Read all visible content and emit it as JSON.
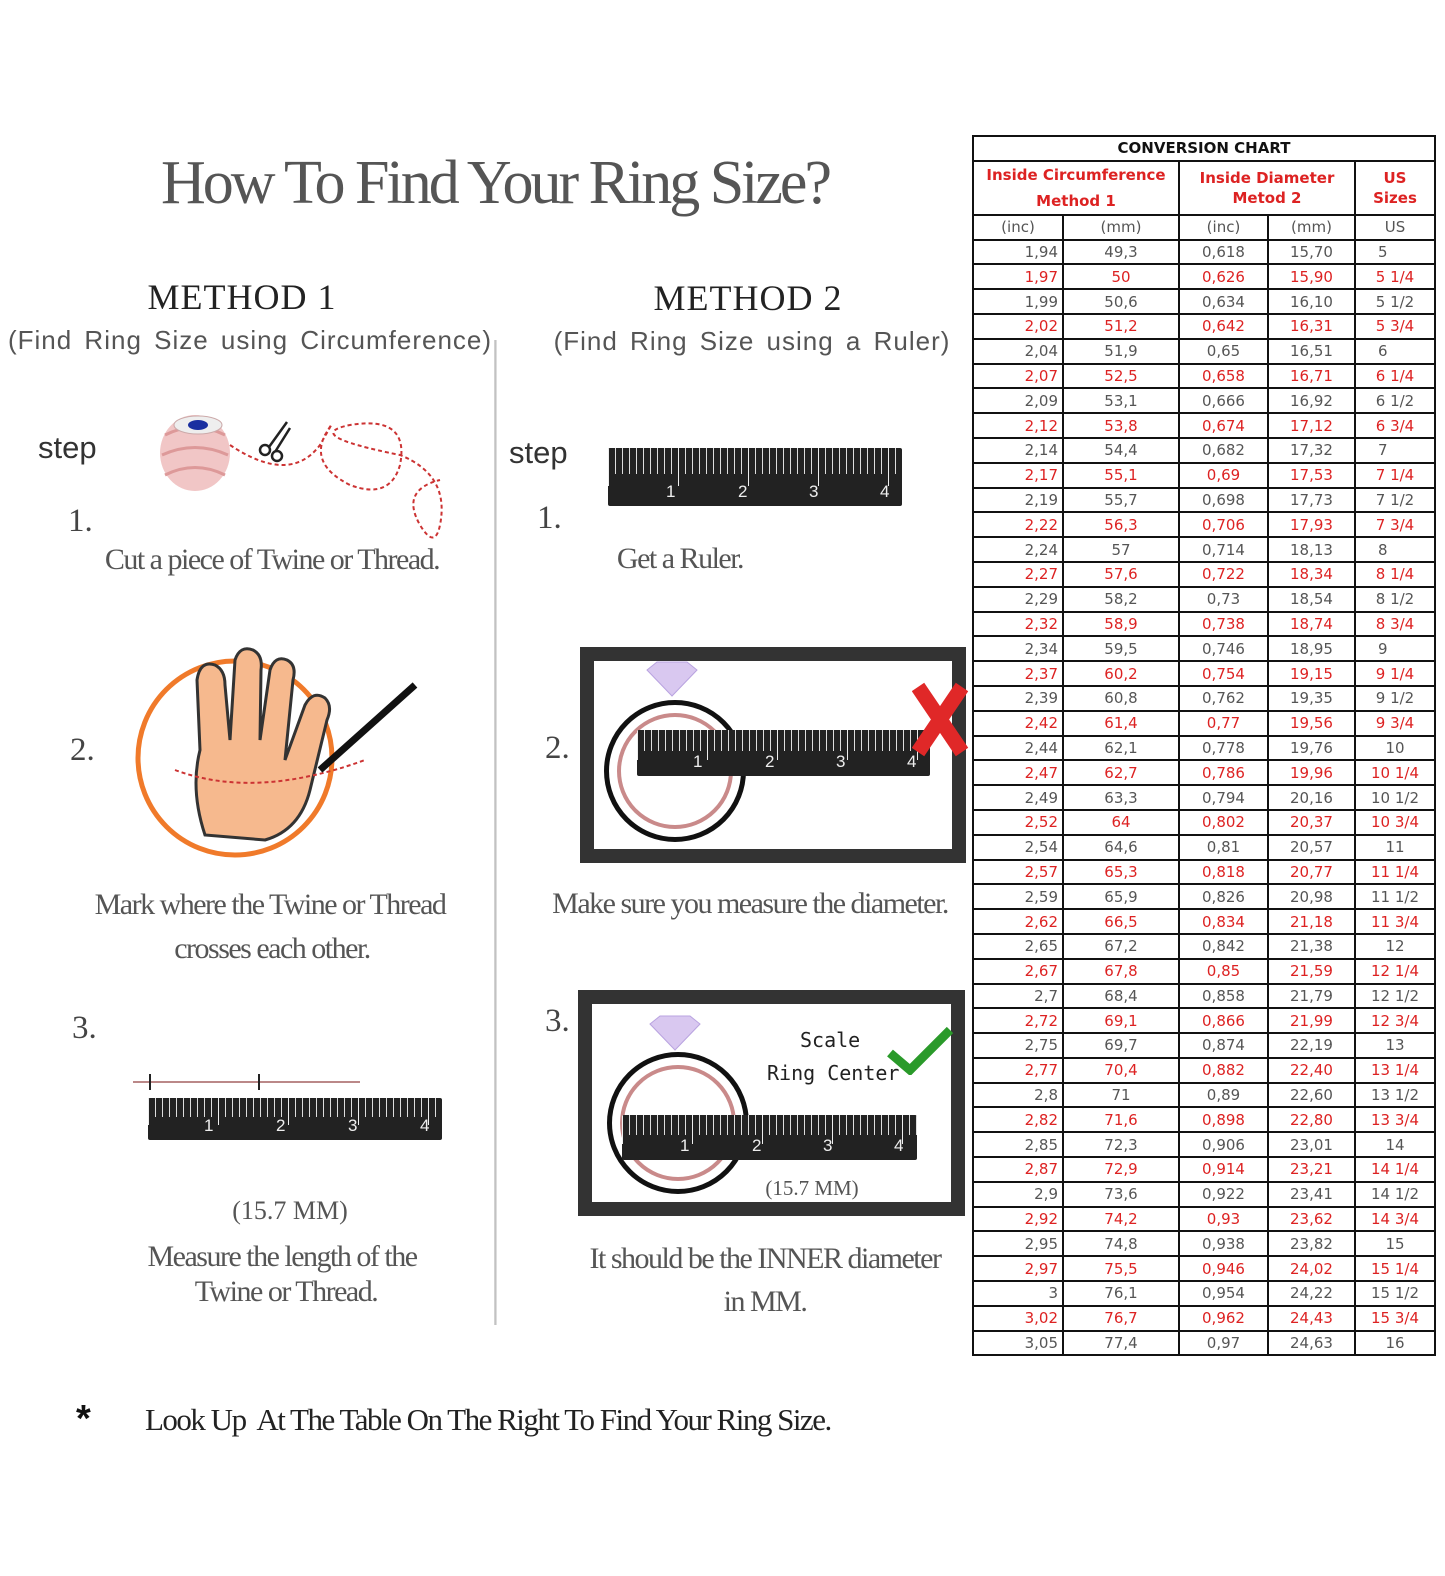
{
  "title": "How To Find Your Ring Size?",
  "method1": {
    "heading": "METHOD 1",
    "subheading": "(Find Ring Size using Circumference)",
    "step_label": "step",
    "steps": [
      {
        "number": "1.",
        "text_lines": [
          "Cut a piece of  Twine or Thread."
        ]
      },
      {
        "number": "2.",
        "text_lines": [
          "Mark where the Twine or Thread",
          "crosses each other."
        ]
      },
      {
        "number": "3.",
        "measurement": "(15.7 MM)",
        "text_lines": [
          "Measure the length of the",
          "Twine or Thread."
        ]
      }
    ]
  },
  "method2": {
    "heading": "METHOD 2",
    "subheading": "(Find Ring Size using a Ruler)",
    "step_label": "step",
    "steps": [
      {
        "number": "1.",
        "text_lines": [
          "Get a Ruler."
        ]
      },
      {
        "number": "2.",
        "text_lines": [
          "Make sure you measure the diameter."
        ]
      },
      {
        "number": "3.",
        "scale_label": "Scale",
        "center_label": "Ring Center",
        "measurement": "(15.7 MM)",
        "text_lines": [
          "It should be the INNER diameter",
          "in MM."
        ]
      }
    ]
  },
  "ruler_labels": [
    "1",
    "2",
    "3",
    "4"
  ],
  "footer": {
    "bullet": "*",
    "text": "Look Up  At The Table On The Right To Find Your Ring Size."
  },
  "colors": {
    "accent_red": "#dd2222",
    "hand_circle": "#f07a2a",
    "check": "#2a9a2a"
  },
  "conversion_chart": {
    "title": "CONVERSION CHART",
    "groups": [
      {
        "line1": "Inside Circumference",
        "line2": "Method 1"
      },
      {
        "line1": "Inside Diameter",
        "line2": "Metod 2"
      },
      {
        "line1": "US Sizes"
      }
    ],
    "columns": [
      "(inc)",
      "(mm)",
      "(inc)",
      "(mm)",
      "US"
    ],
    "rows": [
      [
        "1,94",
        "49,3",
        "0,618",
        "15,70",
        "5"
      ],
      [
        "1,97",
        "50",
        "0,626",
        "15,90",
        "5 1/4"
      ],
      [
        "1,99",
        "50,6",
        "0,634",
        "16,10",
        "5 1/2"
      ],
      [
        "2,02",
        "51,2",
        "0,642",
        "16,31",
        "5 3/4"
      ],
      [
        "2,04",
        "51,9",
        "0,65",
        "16,51",
        "6"
      ],
      [
        "2,07",
        "52,5",
        "0,658",
        "16,71",
        "6 1/4"
      ],
      [
        "2,09",
        "53,1",
        "0,666",
        "16,92",
        "6 1/2"
      ],
      [
        "2,12",
        "53,8",
        "0,674",
        "17,12",
        "6 3/4"
      ],
      [
        "2,14",
        "54,4",
        "0,682",
        "17,32",
        "7"
      ],
      [
        "2,17",
        "55,1",
        "0,69",
        "17,53",
        "7 1/4"
      ],
      [
        "2,19",
        "55,7",
        "0,698",
        "17,73",
        "7 1/2"
      ],
      [
        "2,22",
        "56,3",
        "0,706",
        "17,93",
        "7 3/4"
      ],
      [
        "2,24",
        "57",
        "0,714",
        "18,13",
        "8"
      ],
      [
        "2,27",
        "57,6",
        "0,722",
        "18,34",
        "8 1/4"
      ],
      [
        "2,29",
        "58,2",
        "0,73",
        "18,54",
        "8 1/2"
      ],
      [
        "2,32",
        "58,9",
        "0,738",
        "18,74",
        "8 3/4"
      ],
      [
        "2,34",
        "59,5",
        "0,746",
        "18,95",
        "9"
      ],
      [
        "2,37",
        "60,2",
        "0,754",
        "19,15",
        "9 1/4"
      ],
      [
        "2,39",
        "60,8",
        "0,762",
        "19,35",
        "9 1/2"
      ],
      [
        "2,42",
        "61,4",
        "0,77",
        "19,56",
        "9 3/4"
      ],
      [
        "2,44",
        "62,1",
        "0,778",
        "19,76",
        "10"
      ],
      [
        "2,47",
        "62,7",
        "0,786",
        "19,96",
        "10 1/4"
      ],
      [
        "2,49",
        "63,3",
        "0,794",
        "20,16",
        "10 1/2"
      ],
      [
        "2,52",
        "64",
        "0,802",
        "20,37",
        "10 3/4"
      ],
      [
        "2,54",
        "64,6",
        "0,81",
        "20,57",
        "11"
      ],
      [
        "2,57",
        "65,3",
        "0,818",
        "20,77",
        "11 1/4"
      ],
      [
        "2,59",
        "65,9",
        "0,826",
        "20,98",
        "11 1/2"
      ],
      [
        "2,62",
        "66,5",
        "0,834",
        "21,18",
        "11 3/4"
      ],
      [
        "2,65",
        "67,2",
        "0,842",
        "21,38",
        "12"
      ],
      [
        "2,67",
        "67,8",
        "0,85",
        "21,59",
        "12 1/4"
      ],
      [
        "2,7",
        "68,4",
        "0,858",
        "21,79",
        "12 1/2"
      ],
      [
        "2,72",
        "69,1",
        "0,866",
        "21,99",
        "12 3/4"
      ],
      [
        "2,75",
        "69,7",
        "0,874",
        "22,19",
        "13"
      ],
      [
        "2,77",
        "70,4",
        "0,882",
        "22,40",
        "13 1/4"
      ],
      [
        "2,8",
        "71",
        "0,89",
        "22,60",
        "13 1/2"
      ],
      [
        "2,82",
        "71,6",
        "0,898",
        "22,80",
        "13 3/4"
      ],
      [
        "2,85",
        "72,3",
        "0,906",
        "23,01",
        "14"
      ],
      [
        "2,87",
        "72,9",
        "0,914",
        "23,21",
        "14 1/4"
      ],
      [
        "2,9",
        "73,6",
        "0,922",
        "23,41",
        "14 1/2"
      ],
      [
        "2,92",
        "74,2",
        "0,93",
        "23,62",
        "14 3/4"
      ],
      [
        "2,95",
        "74,8",
        "0,938",
        "23,82",
        "15"
      ],
      [
        "2,97",
        "75,5",
        "0,946",
        "24,02",
        "15 1/4"
      ],
      [
        "3",
        "76,1",
        "0,954",
        "24,22",
        "15 1/2"
      ],
      [
        "3,02",
        "76,7",
        "0,962",
        "24,43",
        "15 3/4"
      ],
      [
        "3,05",
        "77,4",
        "0,97",
        "24,63",
        "16"
      ]
    ]
  }
}
